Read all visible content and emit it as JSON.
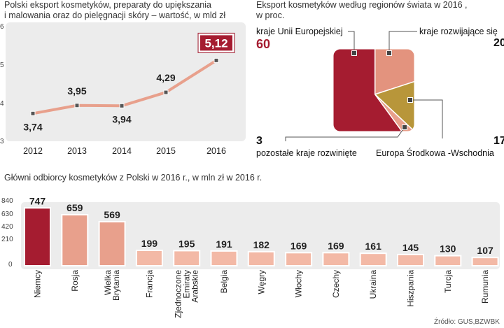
{
  "line_chart": {
    "title_line1": "Polski eksport kosmetyków, preparaty do upiększania",
    "title_line2": "i malowania oraz do pielęgnacji skóry – wartość, w mld zł",
    "y_ticks": [
      "6",
      "5",
      "4",
      "3"
    ],
    "highlight_label": "5,12",
    "highlight_color": "#a51c30",
    "line_color": "#e8a08c"
  },
  "pie_chart": {
    "title_line1": "Eksport kosmetyków według regionów świata w 2016 ,",
    "title_line2": "w proc.",
    "labels": {
      "eu": "kraje Unii Europejskiej",
      "developing": "kraje rozwijające się",
      "cee": "Europa Środkowa -Wschodnia",
      "other_developed": "pozostałe kraje rozwinięte"
    },
    "values_text": {
      "eu": "60",
      "developing": "20",
      "cee": "17",
      "other_developed": "3"
    }
  },
  "bar_chart": {
    "title": "Główni odbiorcy kosmetyków z Polski  w 2016 r., w mln zł w 2016 r.",
    "y_ticks": [
      "840",
      "630",
      "420",
      "210",
      "0"
    ],
    "colors": {
      "top": "#a51c30",
      "second": "#e8a08c",
      "rest": "#f3b9a6"
    }
  },
  "source": "Źródło: GUS,BZWBK",
  "chart_data": [
    {
      "type": "line",
      "title": "Polski eksport kosmetyków, preparaty do upiększania i malowania oraz do pielęgnacji skóry – wartość, w mld zł",
      "x": [
        "2012",
        "2013",
        "2014",
        "2015",
        "2016"
      ],
      "values": [
        3.74,
        3.95,
        3.94,
        4.29,
        5.12
      ],
      "value_labels": [
        "3,74",
        "3,95",
        "3,94",
        "4,29",
        "5,12"
      ],
      "ylim": [
        3,
        6
      ],
      "grid": false
    },
    {
      "type": "pie",
      "title": "Eksport kosmetyków według regionów świata w 2016 , w proc.",
      "slices": [
        {
          "label": "kraje Unii Europejskiej",
          "value": 60,
          "color": "#a51c30"
        },
        {
          "label": "kraje rozwijające się",
          "value": 20,
          "color": "#e3937e"
        },
        {
          "label": "Europa Środkowa -Wschodnia",
          "value": 17,
          "color": "#b8963a"
        },
        {
          "label": "pozostałe kraje rozwinięte",
          "value": 3,
          "color": "#e8a08c"
        }
      ]
    },
    {
      "type": "bar",
      "title": "Główni odbiorcy kosmetyków z Polski  w 2016 r., w mln zł w 2016 r.",
      "categories": [
        "Niemcy",
        "Rosja",
        "Wielka Brytania",
        "Francja",
        "Zjednoczone Emiraty Arabskie",
        "Belgia",
        "Węgry",
        "Włochy",
        "Czechy",
        "Ukraina",
        "Hiszpania",
        "Turcja",
        "Rumunia"
      ],
      "category_lines": [
        [
          "Niemcy"
        ],
        [
          "Rosja"
        ],
        [
          "Wielka",
          "Brytania"
        ],
        [
          "Francja"
        ],
        [
          "Zjednoczone",
          "Emiraty",
          "Arabskie"
        ],
        [
          "Belgia"
        ],
        [
          "Węgry"
        ],
        [
          "Włochy"
        ],
        [
          "Czechy"
        ],
        [
          "Ukraina"
        ],
        [
          "Hiszpania"
        ],
        [
          "Turcja"
        ],
        [
          "Rumunia"
        ]
      ],
      "values": [
        747,
        659,
        569,
        199,
        195,
        191,
        182,
        169,
        169,
        161,
        145,
        130,
        107
      ],
      "ylim": [
        0,
        840
      ]
    }
  ]
}
